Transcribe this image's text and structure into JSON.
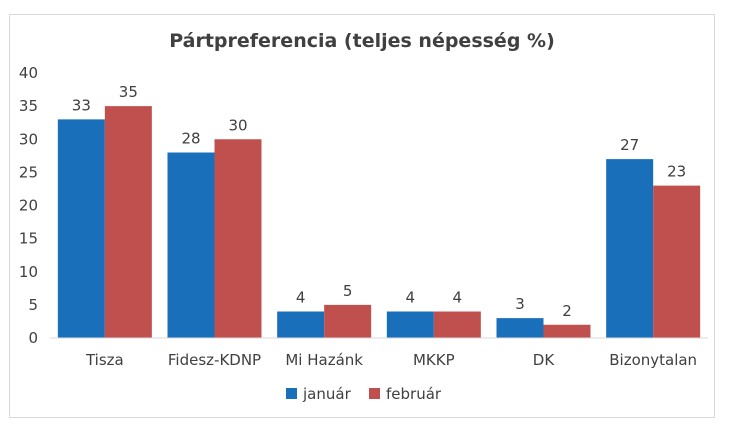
{
  "chart_data": {
    "type": "bar",
    "title": "Pártpreferencia (teljes népesség %)",
    "categories": [
      "Tisza",
      "Fidesz-KDNP",
      "Mi Hazánk",
      "MKKP",
      "DK",
      "Bizonytalan"
    ],
    "series": [
      {
        "name": "január",
        "color": "#1a6fba",
        "values": [
          33,
          28,
          4,
          4,
          3,
          27
        ]
      },
      {
        "name": "február",
        "color": "#c0504d",
        "values": [
          35,
          30,
          5,
          4,
          2,
          23
        ]
      }
    ],
    "yticks": [
      "0",
      "5",
      "10",
      "15",
      "20",
      "25",
      "30",
      "35",
      "40"
    ],
    "ylim": [
      0,
      40
    ],
    "xlabel": "",
    "ylabel": "",
    "grid": false,
    "legend_position": "bottom"
  }
}
